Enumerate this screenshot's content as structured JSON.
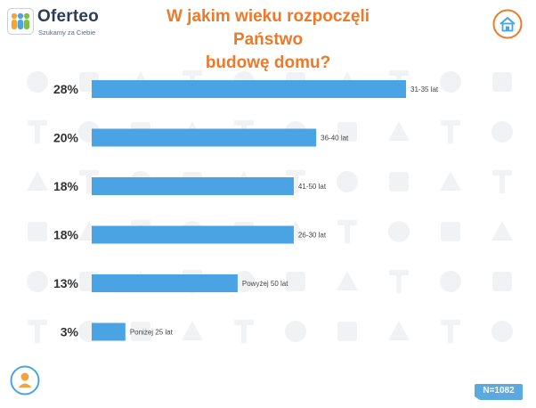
{
  "brand": {
    "name": "Oferteo",
    "tagline": "Szukamy za Ciebie"
  },
  "title_line1": "W jakim wieku rozpoczęli Państwo",
  "title_line2": "budowę domu?",
  "sample_size": "N=1082",
  "icons": {
    "logo": "oferteo-people-logo",
    "house": "house-icon",
    "person": "person-icon"
  },
  "colors": {
    "bar": "#4aa3e3",
    "title": "#ec7a2a",
    "label": "#333333",
    "badge": "#5aa9e0"
  },
  "chart_data": {
    "type": "bar",
    "orientation": "horizontal",
    "title": "W jakim wieku rozpoczęli Państwo budowę domu?",
    "categories": [
      "31-35 lat",
      "36-40 lat",
      "41-50 lat",
      "26-30 lat",
      "Powyżej 50 lat",
      "Poniżej 25 lat"
    ],
    "values": [
      28,
      20,
      18,
      18,
      13,
      3
    ],
    "value_labels": [
      "28%",
      "20%",
      "18%",
      "18%",
      "13%",
      "3%"
    ],
    "unit": "%",
    "xlim": [
      0,
      28
    ],
    "grid": false,
    "legend": "none"
  }
}
